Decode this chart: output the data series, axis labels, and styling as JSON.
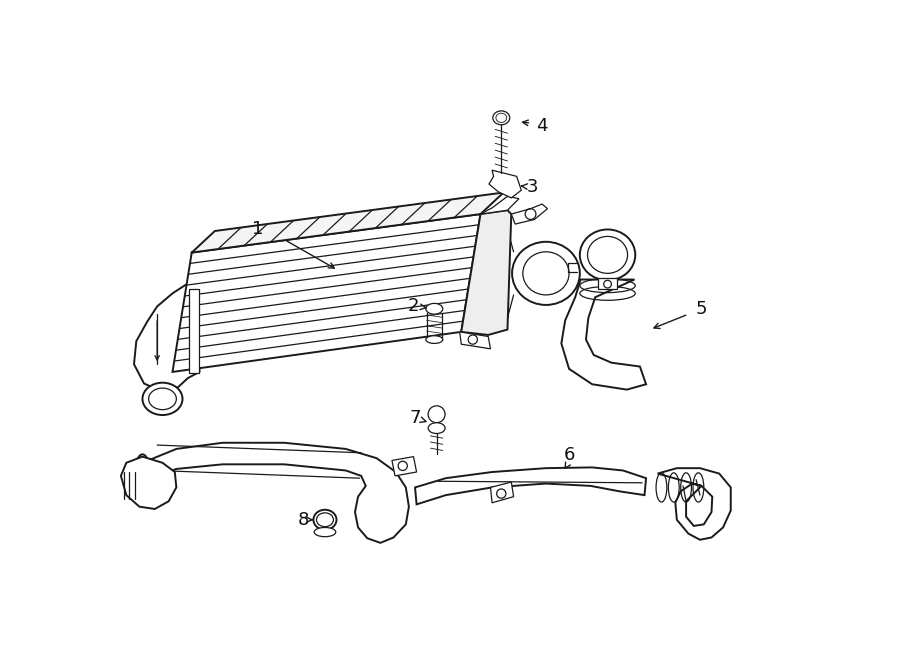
{
  "background_color": "#ffffff",
  "line_color": "#1a1a1a",
  "lw": 1.4,
  "tlw": 0.9,
  "figsize": [
    9.0,
    6.61
  ],
  "dpi": 100
}
